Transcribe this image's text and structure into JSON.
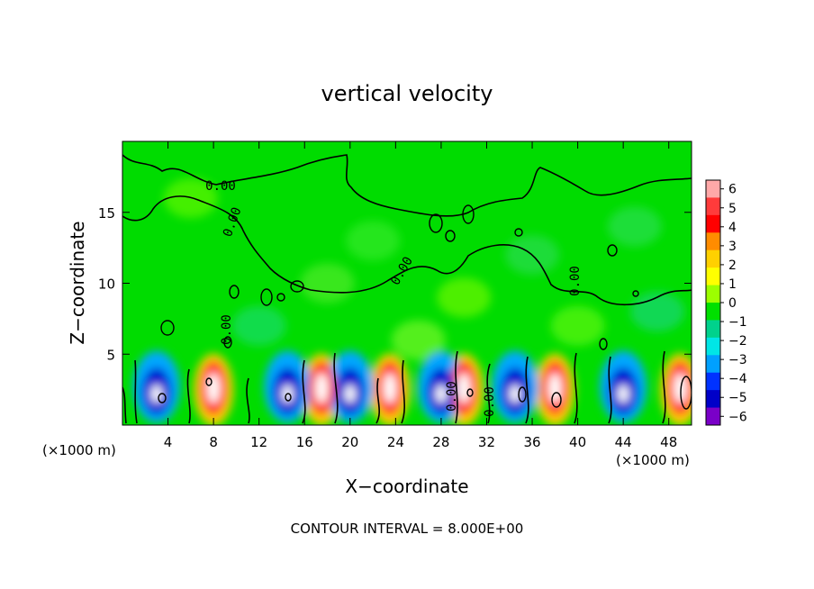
{
  "chart_data": {
    "type": "heatmap",
    "title": "vertical velocity",
    "xlabel": "X−coordinate",
    "ylabel": "Z−coordinate",
    "x_unit_left": "(×1000 m)",
    "x_unit_right": "(×1000 m)",
    "xlim": [
      0,
      50
    ],
    "ylim": [
      0,
      20
    ],
    "x_ticks": [
      4,
      8,
      12,
      16,
      20,
      24,
      28,
      32,
      36,
      40,
      44,
      48
    ],
    "y_ticks": [
      5,
      10,
      15
    ],
    "colorbar": {
      "ticks": [
        6,
        5,
        4,
        3,
        2,
        1,
        0,
        "−1",
        "−2",
        "−3",
        "−4",
        "−5",
        "−6"
      ],
      "colors": [
        "#ffa8a8",
        "#ff3b3b",
        "#ff0000",
        "#ff8c00",
        "#ffd000",
        "#ffff00",
        "#9cff00",
        "#00e000",
        "#00d28c",
        "#00e6e6",
        "#00a0ff",
        "#0032ff",
        "#0000c8",
        "#7a00c8"
      ],
      "range": [
        -6,
        6
      ]
    },
    "contour_labels": [
      "0.00",
      "0.00",
      "0.00",
      "0.00",
      "0.00",
      "0.00",
      "0.00"
    ],
    "contour_interval_text": "CONTOUR INTERVAL = 8.000E+00",
    "updraft_centers_x": [
      8,
      17.5,
      23.5,
      30,
      38,
      49
    ],
    "downdraft_centers_x": [
      3,
      14.5,
      20,
      28,
      34.5,
      44
    ]
  }
}
